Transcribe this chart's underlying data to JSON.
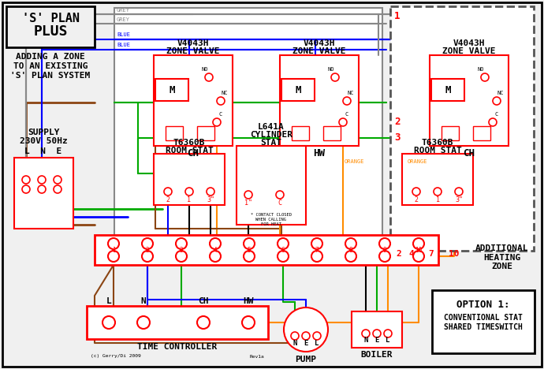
{
  "bg_color": "#f0f0f0",
  "red": "#ff0000",
  "blue": "#0000ff",
  "green": "#00aa00",
  "orange": "#ff8c00",
  "grey": "#888888",
  "brown": "#8B4513",
  "black": "#000000",
  "figsize": [
    6.9,
    4.68
  ],
  "dpi": 100,
  "title_line1": "'S' PLAN",
  "title_line2": "PLUS",
  "sub1": "ADDING A ZONE",
  "sub2": "TO AN EXISTING",
  "sub3": "'S' PLAN SYSTEM",
  "supply1": "SUPPLY",
  "supply2": "230V 50Hz",
  "supply3": "L  N  E",
  "additional": "ADDITIONAL\nHEATING\nZONE",
  "option_title": "OPTION 1:",
  "option_line1": "CONVENTIONAL STAT",
  "option_line2": "SHARED TIMESWITCH",
  "copyright": "(c) Gerry/Di 2009",
  "rev": "Rev1a"
}
